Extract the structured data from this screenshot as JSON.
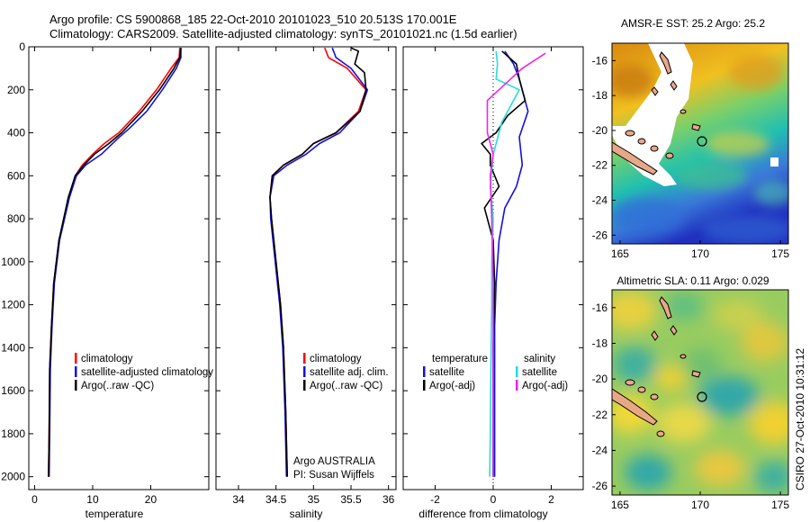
{
  "header": {
    "line1": "Argo profile: CS 5900868_185 22-Oct-2010 20101023_510 20.513S 170.001E",
    "line2": "Climatology: CARS2009. Satellite-adjusted climatology: synTS_20101021.nc (1.5d earlier)"
  },
  "stamp": "CSIRO 27-Oct-2010 10:31:12",
  "colors": {
    "climatology": "#ff0000",
    "satellite": "#1010e0",
    "argo": "#000000",
    "sal_satellite": "#22dddd",
    "sal_argo": "#ee22ee"
  },
  "chart_data": [
    {
      "id": "temperature",
      "type": "line",
      "xlabel": "temperature",
      "ylabel": "",
      "xlim": [
        -1,
        30
      ],
      "ylim": [
        2060,
        0
      ],
      "y_inverted": true,
      "xticks": [
        0,
        10,
        20
      ],
      "xticklabels": [
        "0",
        "10",
        "20"
      ],
      "yticks": [
        0,
        200,
        400,
        600,
        800,
        1000,
        1200,
        1400,
        1600,
        1800,
        2000
      ],
      "yticklabels": [
        "0",
        "200",
        "400",
        "600",
        "800",
        "1000",
        "1200",
        "1400",
        "1600",
        "1800",
        "2000"
      ],
      "legend_position": "lower-right",
      "series": [
        {
          "name": "climatology",
          "color": "#ff0000",
          "x": [
            25.0,
            24.9,
            23.5,
            21.0,
            18.0,
            14.5,
            12.0,
            10.0,
            8.2,
            7.0,
            5.9,
            4.2,
            3.3,
            2.9,
            2.6,
            2.5,
            2.4
          ],
          "y": [
            5,
            50,
            100,
            200,
            300,
            400,
            450,
            500,
            550,
            600,
            700,
            900,
            1100,
            1300,
            1500,
            1800,
            2000
          ]
        },
        {
          "name": "satellite-adjusted climatology",
          "color": "#1010e0",
          "x": [
            25.2,
            25.2,
            24.4,
            22.0,
            19.3,
            16.3,
            14.6,
            11.5,
            8.8,
            7.2,
            6.0,
            4.3,
            3.4,
            3.0,
            2.7,
            2.6,
            2.5
          ],
          "y": [
            5,
            50,
            100,
            200,
            300,
            380,
            420,
            500,
            550,
            600,
            700,
            900,
            1100,
            1300,
            1500,
            1800,
            2000
          ]
        },
        {
          "name": "Argo(..raw -QC)",
          "color": "#000000",
          "x": [
            25.2,
            25.0,
            24.0,
            21.5,
            18.5,
            15.0,
            12.8,
            10.3,
            8.5,
            7.0,
            5.8,
            4.2,
            3.3,
            2.9,
            2.6,
            2.5,
            2.4
          ],
          "y": [
            5,
            50,
            100,
            200,
            300,
            400,
            450,
            500,
            550,
            600,
            700,
            900,
            1100,
            1300,
            1500,
            1800,
            2000
          ]
        }
      ],
      "legend": [
        "climatology",
        "satellite-adjusted climatology",
        "Argo(..raw -QC)"
      ]
    },
    {
      "id": "salinity",
      "type": "line",
      "xlabel": "salinity",
      "ylabel": "",
      "xlim": [
        33.7,
        36.1
      ],
      "ylim": [
        2060,
        0
      ],
      "y_inverted": true,
      "xticks": [
        34,
        34.5,
        35,
        35.5,
        36
      ],
      "xticklabels": [
        "34",
        "34.5",
        "35",
        "35.5",
        "36"
      ],
      "legend_position": "lower-right",
      "annotation": [
        "Argo AUSTRALIA",
        "PI: Susan Wijffels"
      ],
      "series": [
        {
          "name": "climatology",
          "color": "#ff0000",
          "x": [
            35.15,
            35.2,
            35.45,
            35.7,
            35.6,
            35.3,
            35.0,
            34.85,
            34.6,
            34.45,
            34.42,
            34.44,
            34.5,
            34.56,
            34.6,
            34.63,
            34.65
          ],
          "y": [
            5,
            50,
            100,
            200,
            300,
            400,
            450,
            500,
            550,
            600,
            700,
            800,
            1000,
            1200,
            1400,
            1700,
            2000
          ]
        },
        {
          "name": "satellite adj. clim.",
          "color": "#1010e0",
          "x": [
            35.25,
            35.3,
            35.5,
            35.72,
            35.62,
            35.35,
            35.08,
            34.9,
            34.65,
            34.47,
            34.42,
            34.43,
            34.49,
            34.55,
            34.59,
            34.62,
            34.64
          ],
          "y": [
            5,
            50,
            100,
            200,
            300,
            400,
            450,
            500,
            550,
            600,
            700,
            800,
            1000,
            1200,
            1400,
            1700,
            2000
          ]
        },
        {
          "name": "Argo(..raw -QC)",
          "color": "#000000",
          "x": [
            35.5,
            35.6,
            35.55,
            35.68,
            35.7,
            35.62,
            35.3,
            35.0,
            34.85,
            34.6,
            34.45,
            34.42,
            34.44,
            34.5,
            34.56,
            34.6,
            34.63,
            34.65
          ],
          "y": [
            5,
            20,
            80,
            120,
            200,
            300,
            400,
            450,
            500,
            550,
            600,
            700,
            800,
            1000,
            1200,
            1400,
            1700,
            2000
          ]
        }
      ],
      "legend": [
        "climatology",
        "satellite adj. clim.",
        "Argo(..raw -QC)"
      ]
    },
    {
      "id": "difference",
      "type": "line",
      "xlabel": "difference from climatology",
      "ylabel": "",
      "xlim": [
        -3.1,
        3.1
      ],
      "ylim": [
        2060,
        0
      ],
      "y_inverted": true,
      "xticks": [
        -2,
        0,
        2
      ],
      "xticklabels": [
        "-2",
        "0",
        "2"
      ],
      "legend_position": "lower",
      "legend_headers": [
        "temperature",
        "salinity"
      ],
      "series": [
        {
          "name": "temperature satellite",
          "color": "#1010e0",
          "x": [
            0.4,
            0.7,
            0.9,
            1.2,
            0.9,
            1.0,
            0.8,
            0.4,
            0.2,
            0.1,
            0.05,
            0.05,
            0.05,
            0.05
          ],
          "y": [
            20,
            80,
            150,
            300,
            420,
            550,
            650,
            750,
            900,
            1100,
            1300,
            1500,
            1800,
            2000
          ]
        },
        {
          "name": "temperature Argo(-adj)",
          "color": "#000000",
          "x": [
            0.3,
            0.8,
            0.9,
            1.1,
            0.5,
            0.1,
            -0.4,
            -0.1,
            -0.1,
            0.2,
            -0.3,
            0.0,
            0.05,
            0.0,
            0.0,
            0.0
          ],
          "y": [
            20,
            80,
            150,
            250,
            320,
            400,
            450,
            500,
            550,
            650,
            750,
            900,
            1100,
            1400,
            1700,
            2000
          ]
        },
        {
          "name": "salinity satellite",
          "color": "#22dddd",
          "x": [
            0.1,
            0.15,
            0.1,
            0.9,
            0.3,
            0.0,
            -0.1,
            0.0,
            -0.05,
            -0.05,
            -0.08,
            -0.1,
            -0.12
          ],
          "y": [
            20,
            80,
            150,
            200,
            350,
            500,
            650,
            800,
            1000,
            1200,
            1500,
            1800,
            2000
          ]
        },
        {
          "name": "salinity Argo(-adj)",
          "color": "#ee22ee",
          "x": [
            1.8,
            1.0,
            0.6,
            -0.2,
            -0.2,
            0.0,
            -0.1,
            -0.05,
            0.0,
            0.0,
            0.0
          ],
          "y": [
            30,
            100,
            150,
            250,
            400,
            500,
            600,
            800,
            1100,
            1500,
            2000
          ]
        }
      ],
      "legend": [
        "satellite",
        "Argo(-adj)",
        "satellite",
        "Argo(-adj)"
      ]
    }
  ],
  "maps": [
    {
      "id": "sst",
      "title": "AMSR-E SST: 25.2 Argo: 25.2",
      "xticks": [
        "165",
        "170",
        "175"
      ],
      "yticks": [
        "-16",
        "-18",
        "-20",
        "-22",
        "-24",
        "-26"
      ],
      "lon_range": [
        164.5,
        175.5
      ],
      "lat_range": [
        -26.5,
        -15.0
      ],
      "float": [
        170.0,
        -20.5
      ]
    },
    {
      "id": "sla",
      "title": "Altimetric SLA: 0.11 Argo: 0.029",
      "xticks": [
        "165",
        "170",
        "175"
      ],
      "yticks": [
        "-16",
        "-18",
        "-20",
        "-22",
        "-24",
        "-26"
      ],
      "lon_range": [
        164.5,
        175.5
      ],
      "lat_range": [
        -26.5,
        -15.0
      ],
      "float": [
        170.0,
        -20.5
      ]
    }
  ]
}
